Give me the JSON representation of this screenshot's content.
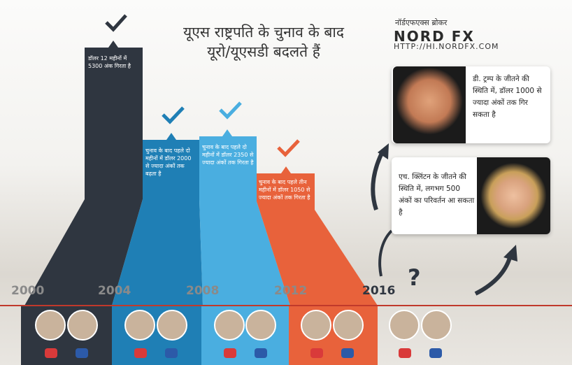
{
  "header": {
    "title": "यूएस राष्ट्रपति के चुनाव के बाद यूरो/यूएसडी बदलते हैं",
    "brand_sub": "नॉर्डएफएक्स ब्रोकर",
    "brand": "NORD FX",
    "url": "HTTP://HI.NORDFX.COM"
  },
  "timeline": {
    "years": [
      "2000",
      "2004",
      "2008",
      "2012",
      "2016"
    ],
    "columns": [
      {
        "text": "डॉलर 12 महीनों में 5300 अंक गिरता है"
      },
      {
        "text": "चुनाव के बाद पहले दो महीनों में डॉलर 2000 से ज्यादा अंकों तक बढ़ता है"
      },
      {
        "text": "चुनाव के बाद पहले दो महीनों में डॉलर 2350 से ज्यादा अंकों तक गिरता है"
      },
      {
        "text": "चुनाव के बाद पहले तीन महीनों में डॉलर 1050 से ज्यादा अंकों तक गिरता है"
      }
    ],
    "question": "?"
  },
  "cards": [
    {
      "text": "डी. ट्रम्प के जीतने की स्थिति में, डॉलर 1000 से ज्यादा अंकों तक गिर सकता है"
    },
    {
      "text": "एच. क्लिंटन के जीतने की स्थिति में, लगभग 500 अंकों का परिवर्तन आ सकता है"
    }
  ]
}
